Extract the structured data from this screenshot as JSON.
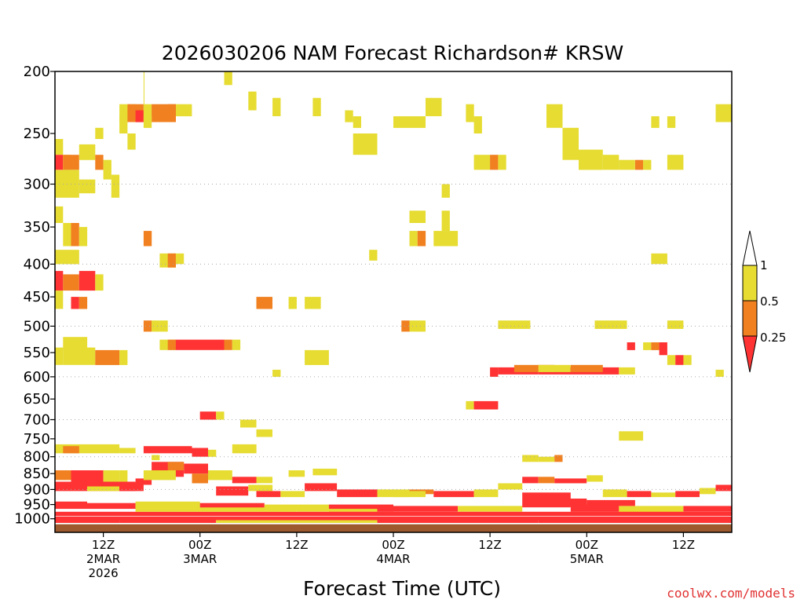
{
  "chart_data": {
    "type": "heatmap",
    "title": "2026030206 NAM Forecast Richardson# KRSW",
    "xlabel": "Forecast Time (UTC)",
    "ylabel": "",
    "credit": "coolwx.com/models",
    "y_axis": {
      "scale": "pressure-log",
      "range_hPa": [
        1050,
        200
      ],
      "ticks": [
        "200",
        "250",
        "300",
        "350",
        "400",
        "450",
        "500",
        "550",
        "600",
        "650",
        "700",
        "750",
        "800",
        "850",
        "900",
        "950",
        "1000"
      ]
    },
    "x_axis": {
      "range_hours": [
        0,
        84
      ],
      "ticks": [
        {
          "hour": 6,
          "lines": [
            "12Z",
            "2MAR",
            "2026"
          ]
        },
        {
          "hour": 18,
          "lines": [
            "00Z",
            "3MAR"
          ]
        },
        {
          "hour": 30,
          "lines": [
            "12Z"
          ]
        },
        {
          "hour": 42,
          "lines": [
            "00Z",
            "4MAR"
          ]
        },
        {
          "hour": 54,
          "lines": [
            "12Z"
          ]
        },
        {
          "hour": 66,
          "lines": [
            "00Z",
            "5MAR"
          ]
        },
        {
          "hour": 78,
          "lines": [
            "12Z"
          ]
        }
      ]
    },
    "grid": "dotted horizontal at 300, 400, 500, 600, 700, 800, 900 hPa",
    "legend": {
      "placement": "right",
      "colors": [
        "#ff3333",
        "#f08020",
        "#e6dc32",
        "#ffffff"
      ],
      "labels": [
        "0.25",
        "0.5",
        "1"
      ]
    },
    "ground_color": "#9c5a2e",
    "surface_pressure_hPa": 1020,
    "categories": {
      "1": "0.5 to 1 (yellow)",
      "2": "0.25 to 0.5 (orange)",
      "3": "below 0.25 (red)"
    },
    "cells": [
      [
        11,
        11,
        200,
        225,
        1
      ],
      [
        15,
        17,
        225,
        235,
        1
      ],
      [
        8,
        10,
        225,
        240,
        1
      ],
      [
        8,
        9,
        235,
        250,
        1
      ],
      [
        9,
        10,
        250,
        265,
        1
      ],
      [
        5,
        6,
        245,
        255,
        1
      ],
      [
        9,
        11,
        225,
        240,
        2
      ],
      [
        10,
        11,
        230,
        240,
        3
      ],
      [
        11,
        12,
        225,
        240,
        1
      ],
      [
        14,
        15,
        225,
        240,
        2
      ],
      [
        12,
        15,
        225,
        240,
        2
      ],
      [
        11,
        12,
        235,
        245,
        1
      ],
      [
        21,
        22,
        200,
        210,
        1
      ],
      [
        24,
        25,
        215,
        230,
        1
      ],
      [
        27,
        28,
        220,
        235,
        1
      ],
      [
        32,
        33,
        220,
        235,
        1
      ],
      [
        36,
        37,
        230,
        240,
        1
      ],
      [
        37,
        38,
        235,
        245,
        1
      ],
      [
        42,
        46,
        235,
        245,
        1
      ],
      [
        46,
        48,
        220,
        235,
        1
      ],
      [
        51,
        52,
        225,
        240,
        1
      ],
      [
        52,
        53,
        235,
        250,
        1
      ],
      [
        61,
        63,
        225,
        245,
        1
      ],
      [
        63,
        65,
        245,
        275,
        1
      ],
      [
        65,
        68,
        265,
        285,
        1
      ],
      [
        68,
        70,
        270,
        285,
        1
      ],
      [
        70,
        72,
        275,
        285,
        1
      ],
      [
        72,
        73,
        275,
        285,
        2
      ],
      [
        73,
        74,
        275,
        285,
        1
      ],
      [
        74,
        75,
        235,
        245,
        1
      ],
      [
        76,
        77,
        235,
        245,
        1
      ],
      [
        76,
        78,
        270,
        285,
        1
      ],
      [
        82,
        84,
        225,
        240,
        1
      ],
      [
        37,
        40,
        250,
        270,
        1
      ],
      [
        52,
        54,
        270,
        285,
        1
      ],
      [
        54,
        55,
        270,
        285,
        2
      ],
      [
        55,
        56,
        270,
        285,
        1
      ],
      [
        0,
        1,
        255,
        270,
        1
      ],
      [
        0,
        1,
        270,
        285,
        3
      ],
      [
        1,
        2,
        270,
        285,
        1
      ],
      [
        1,
        3,
        270,
        285,
        2
      ],
      [
        3,
        5,
        260,
        275,
        1
      ],
      [
        5,
        6,
        270,
        285,
        2
      ],
      [
        6,
        7,
        275,
        295,
        1
      ],
      [
        0,
        3,
        285,
        315,
        1
      ],
      [
        3,
        5,
        295,
        310,
        1
      ],
      [
        7,
        8,
        290,
        315,
        1
      ],
      [
        48,
        49,
        300,
        315,
        1
      ],
      [
        0,
        1,
        325,
        345,
        1
      ],
      [
        1,
        2,
        345,
        375,
        1
      ],
      [
        2,
        3,
        345,
        375,
        2
      ],
      [
        3,
        4,
        350,
        375,
        1
      ],
      [
        11,
        12,
        355,
        375,
        2
      ],
      [
        44,
        46,
        330,
        345,
        1
      ],
      [
        44,
        45,
        355,
        375,
        1
      ],
      [
        45,
        46,
        355,
        375,
        2
      ],
      [
        47,
        50,
        355,
        375,
        1
      ],
      [
        48,
        49,
        330,
        355,
        1
      ],
      [
        0,
        3,
        380,
        400,
        1
      ],
      [
        13,
        15,
        385,
        405,
        1
      ],
      [
        14,
        15,
        385,
        405,
        2
      ],
      [
        15,
        16,
        385,
        400,
        1
      ],
      [
        39,
        40,
        380,
        395,
        1
      ],
      [
        74,
        76,
        385,
        400,
        1
      ],
      [
        0,
        1,
        410,
        440,
        3
      ],
      [
        1,
        3,
        415,
        440,
        2
      ],
      [
        3,
        5,
        410,
        440,
        3
      ],
      [
        5,
        6,
        415,
        440,
        1
      ],
      [
        0,
        1,
        440,
        470,
        1
      ],
      [
        2,
        3,
        450,
        470,
        3
      ],
      [
        3,
        4,
        450,
        470,
        2
      ],
      [
        25,
        27,
        450,
        470,
        2
      ],
      [
        29,
        30,
        450,
        470,
        1
      ],
      [
        31,
        33,
        450,
        470,
        1
      ],
      [
        11,
        12,
        490,
        510,
        2
      ],
      [
        12,
        13,
        490,
        510,
        1
      ],
      [
        13,
        14,
        490,
        510,
        1
      ],
      [
        43,
        44,
        490,
        510,
        2
      ],
      [
        44,
        46,
        490,
        510,
        1
      ],
      [
        55,
        59,
        490,
        505,
        1
      ],
      [
        67,
        71,
        490,
        505,
        1
      ],
      [
        76,
        78,
        490,
        505,
        1
      ],
      [
        1,
        4,
        520,
        545,
        1
      ],
      [
        13,
        15,
        525,
        545,
        1
      ],
      [
        14,
        15,
        525,
        545,
        2
      ],
      [
        15,
        21,
        525,
        545,
        3
      ],
      [
        21,
        22,
        525,
        545,
        2
      ],
      [
        22,
        23,
        525,
        545,
        1
      ],
      [
        0,
        1,
        540,
        575,
        1
      ],
      [
        1,
        5,
        540,
        575,
        1
      ],
      [
        5,
        8,
        545,
        575,
        2
      ],
      [
        8,
        9,
        545,
        575,
        1
      ],
      [
        31,
        34,
        545,
        575,
        1
      ],
      [
        71,
        72,
        530,
        545,
        3
      ],
      [
        73,
        74,
        530,
        545,
        1
      ],
      [
        74,
        75,
        530,
        545,
        2
      ],
      [
        75,
        76,
        530,
        555,
        3
      ],
      [
        76,
        77,
        555,
        575,
        1
      ],
      [
        77,
        78,
        555,
        575,
        3
      ],
      [
        78,
        79,
        555,
        575,
        1
      ],
      [
        27,
        28,
        585,
        600,
        1
      ],
      [
        54,
        55,
        580,
        600,
        3
      ],
      [
        55,
        60,
        580,
        595,
        3
      ],
      [
        60,
        65,
        580,
        595,
        3
      ],
      [
        65,
        70,
        580,
        595,
        3
      ],
      [
        70,
        72,
        580,
        595,
        1
      ],
      [
        82,
        83,
        585,
        600,
        1
      ],
      [
        57,
        62,
        575,
        590,
        2
      ],
      [
        60,
        64,
        575,
        590,
        1
      ],
      [
        64,
        68,
        575,
        590,
        2
      ],
      [
        51,
        52,
        655,
        675,
        1
      ],
      [
        52,
        55,
        655,
        675,
        3
      ],
      [
        18,
        20,
        680,
        700,
        3
      ],
      [
        20,
        21,
        680,
        700,
        1
      ],
      [
        23,
        25,
        700,
        720,
        1
      ],
      [
        25,
        27,
        725,
        745,
        1
      ],
      [
        70,
        73,
        730,
        755,
        1
      ],
      [
        0,
        8,
        765,
        790,
        1
      ],
      [
        1,
        3,
        770,
        790,
        2
      ],
      [
        8,
        10,
        775,
        790,
        1
      ],
      [
        11,
        17,
        770,
        790,
        3
      ],
      [
        17,
        19,
        775,
        800,
        3
      ],
      [
        19,
        20,
        780,
        800,
        1
      ],
      [
        22,
        25,
        765,
        790,
        1
      ],
      [
        12,
        13,
        795,
        810,
        1
      ],
      [
        58,
        60,
        795,
        815,
        1
      ],
      [
        60,
        62,
        800,
        815,
        1
      ],
      [
        62,
        63,
        795,
        815,
        2
      ],
      [
        0,
        2,
        840,
        870,
        2
      ],
      [
        2,
        6,
        840,
        875,
        3
      ],
      [
        6,
        8,
        840,
        875,
        1
      ],
      [
        8,
        9,
        840,
        875,
        1
      ],
      [
        0,
        10,
        875,
        905,
        3
      ],
      [
        10,
        12,
        865,
        885,
        3
      ],
      [
        12,
        16,
        815,
        860,
        3
      ],
      [
        16,
        19,
        820,
        850,
        3
      ],
      [
        19,
        22,
        840,
        870,
        1
      ],
      [
        22,
        25,
        860,
        880,
        3
      ],
      [
        25,
        27,
        860,
        880,
        1
      ],
      [
        29,
        31,
        840,
        860,
        1
      ],
      [
        32,
        35,
        835,
        855,
        1
      ],
      [
        14,
        16,
        815,
        840,
        2
      ],
      [
        17,
        19,
        850,
        880,
        2
      ],
      [
        20,
        24,
        890,
        920,
        3
      ],
      [
        24,
        27,
        885,
        905,
        1
      ],
      [
        11,
        15,
        840,
        870,
        1
      ],
      [
        4,
        8,
        890,
        905,
        1
      ],
      [
        8,
        11,
        880,
        905,
        3
      ],
      [
        25,
        28,
        905,
        925,
        3
      ],
      [
        28,
        31,
        905,
        925,
        1
      ],
      [
        31,
        35,
        880,
        905,
        3
      ],
      [
        35,
        40,
        900,
        925,
        3
      ],
      [
        40,
        44,
        900,
        925,
        1
      ],
      [
        44,
        47,
        900,
        915,
        2
      ],
      [
        47,
        52,
        905,
        925,
        3
      ],
      [
        52,
        55,
        900,
        925,
        1
      ],
      [
        55,
        58,
        880,
        900,
        1
      ],
      [
        58,
        60,
        860,
        880,
        3
      ],
      [
        60,
        62,
        860,
        880,
        2
      ],
      [
        62,
        66,
        865,
        880,
        3
      ],
      [
        66,
        68,
        855,
        875,
        1
      ],
      [
        68,
        71,
        900,
        925,
        1
      ],
      [
        71,
        74,
        905,
        925,
        3
      ],
      [
        74,
        77,
        910,
        925,
        1
      ],
      [
        77,
        80,
        905,
        925,
        3
      ],
      [
        80,
        82,
        895,
        915,
        1
      ],
      [
        82,
        84,
        885,
        905,
        3
      ],
      [
        0,
        4,
        940,
        965,
        3
      ],
      [
        4,
        10,
        945,
        965,
        3
      ],
      [
        10,
        18,
        940,
        965,
        1
      ],
      [
        18,
        26,
        945,
        965,
        3
      ],
      [
        26,
        34,
        950,
        970,
        1
      ],
      [
        34,
        42,
        950,
        975,
        3
      ],
      [
        42,
        50,
        955,
        975,
        3
      ],
      [
        50,
        58,
        955,
        975,
        1
      ],
      [
        58,
        64,
        910,
        960,
        3
      ],
      [
        64,
        70,
        950,
        975,
        3
      ],
      [
        70,
        78,
        955,
        980,
        1
      ],
      [
        78,
        84,
        955,
        975,
        3
      ],
      [
        0,
        84,
        975,
        990,
        3
      ],
      [
        0,
        84,
        992,
        1005,
        3
      ],
      [
        0,
        8,
        1005,
        1015,
        3
      ],
      [
        8,
        20,
        1005,
        1015,
        3
      ],
      [
        20,
        40,
        1005,
        1015,
        1
      ],
      [
        40,
        60,
        1005,
        1015,
        3
      ],
      [
        60,
        84,
        1005,
        1015,
        3
      ],
      [
        10,
        30,
        960,
        975,
        1
      ],
      [
        30,
        40,
        965,
        975,
        1
      ],
      [
        42,
        46,
        905,
        925,
        1
      ],
      [
        60,
        66,
        930,
        955,
        3
      ],
      [
        66,
        72,
        935,
        955,
        3
      ]
    ]
  }
}
